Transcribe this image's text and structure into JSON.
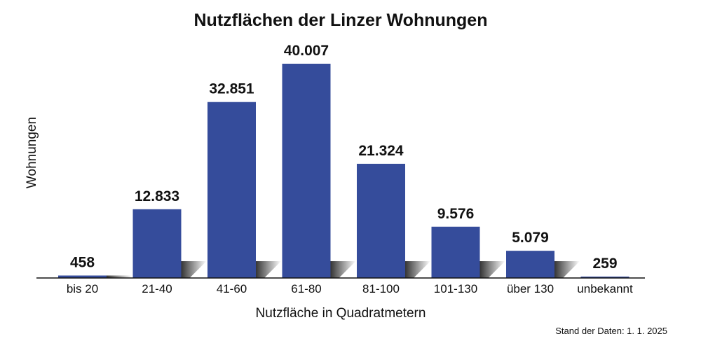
{
  "chart_data": {
    "type": "bar",
    "title": "Nutzflächen der Linzer Wohnungen",
    "xlabel": "Nutzfläche in Quadratmetern",
    "ylabel": "Wohnungen",
    "categories": [
      "bis 20",
      "21-40",
      "41-60",
      "61-80",
      "81-100",
      "101-130",
      "über 130",
      "unbekannt"
    ],
    "values": [
      458,
      12833,
      32851,
      40007,
      21324,
      9576,
      5079,
      259
    ],
    "value_labels": [
      "458",
      "12.833",
      "32.851",
      "40.007",
      "21.324",
      "9.576",
      "5.079",
      "259"
    ],
    "ylim": [
      0,
      40007
    ],
    "grid": false,
    "legend": "none",
    "colors": {
      "bar": "#354c9b",
      "text": "#111111",
      "shadow": "#333333"
    }
  },
  "footnote": "Stand der Daten: 1. 1. 2025"
}
